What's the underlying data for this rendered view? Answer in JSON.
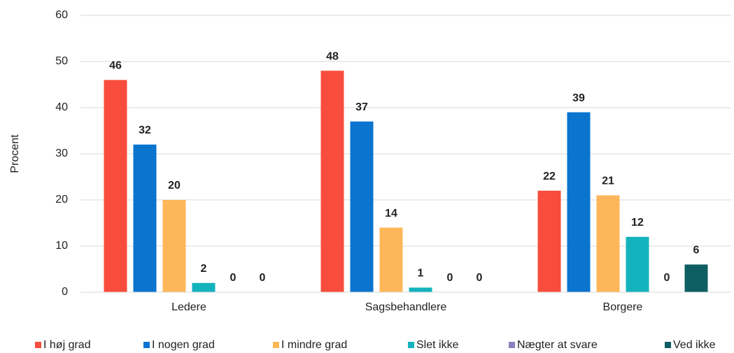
{
  "chart_data": {
    "type": "bar",
    "y_axis_label": "Procent",
    "categories": [
      "Ledere",
      "Sagsbehandlere",
      "Borgere"
    ],
    "series": [
      {
        "name": "I høj grad",
        "color": "#f84c3c",
        "values": [
          46,
          48,
          22
        ]
      },
      {
        "name": "I nogen grad",
        "color": "#0a74cf",
        "values": [
          32,
          37,
          39
        ]
      },
      {
        "name": "I mindre grad",
        "color": "#fdb75a",
        "values": [
          20,
          14,
          21
        ]
      },
      {
        "name": "Slet ikke",
        "color": "#13b3bd",
        "values": [
          2,
          1,
          12
        ]
      },
      {
        "name": "Nægter at svare",
        "color": "#8b7fc0",
        "values": [
          0,
          0,
          0
        ]
      },
      {
        "name": "Ved ikke",
        "color": "#0e5e63",
        "values": [
          0,
          0,
          6
        ]
      }
    ],
    "ylim": [
      0,
      60
    ],
    "yticks": [
      0,
      10,
      20,
      30,
      40,
      50,
      60
    ],
    "grid": true,
    "legend": "bottom"
  }
}
